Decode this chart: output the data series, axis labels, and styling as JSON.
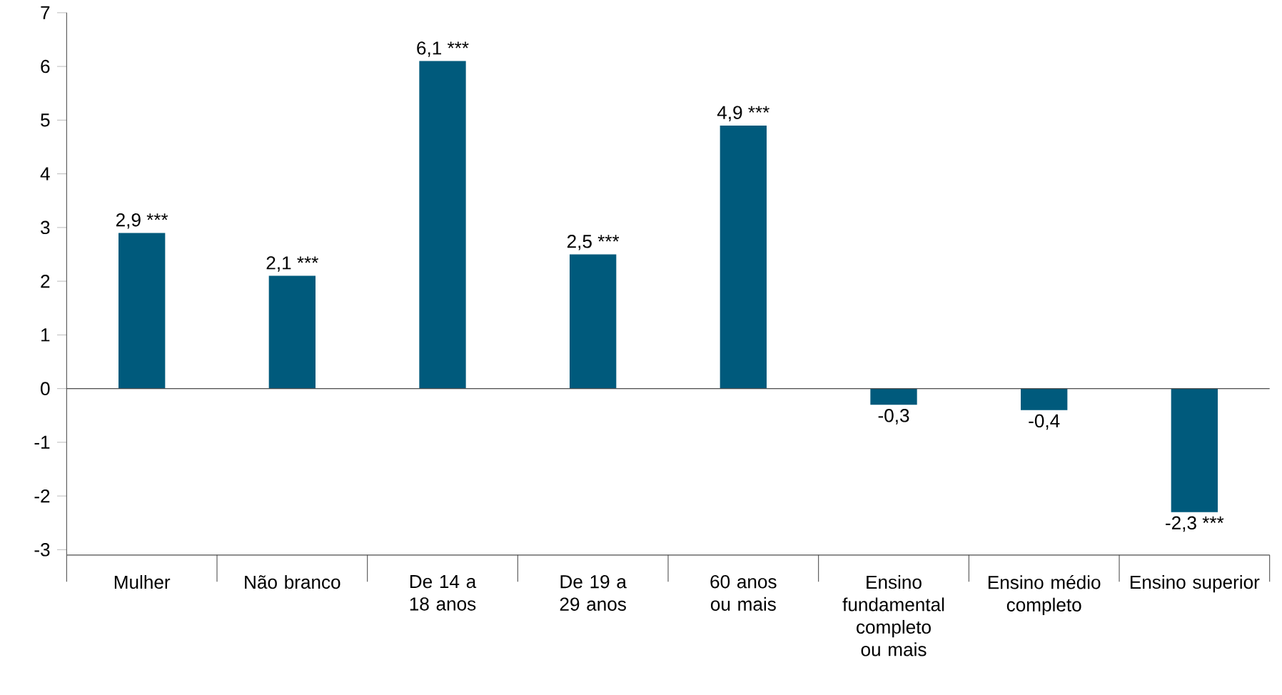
{
  "chart_data": {
    "type": "bar",
    "categories": [
      "Mulher",
      "Não branco",
      "De 14 a 18 anos",
      "De 19 a 29 anos",
      "60 anos ou mais",
      "Ensino fundamental completo ou mais",
      "Ensino médio completo",
      "Ensino superior"
    ],
    "values": [
      2.9,
      2.1,
      6.1,
      2.5,
      4.9,
      -0.3,
      -0.4,
      -2.3
    ],
    "value_labels": [
      "2,9 ***",
      "2,1 ***",
      "6,1 ***",
      "2,5 ***",
      "4,9 ***",
      "-0,3",
      "-0,4",
      "-2,3 ***"
    ],
    "color": "#005a7c",
    "ylim": [
      -3.1,
      7
    ],
    "yticks": [
      -3,
      -2,
      -1,
      0,
      1,
      2,
      3,
      4,
      5,
      6,
      7
    ]
  }
}
